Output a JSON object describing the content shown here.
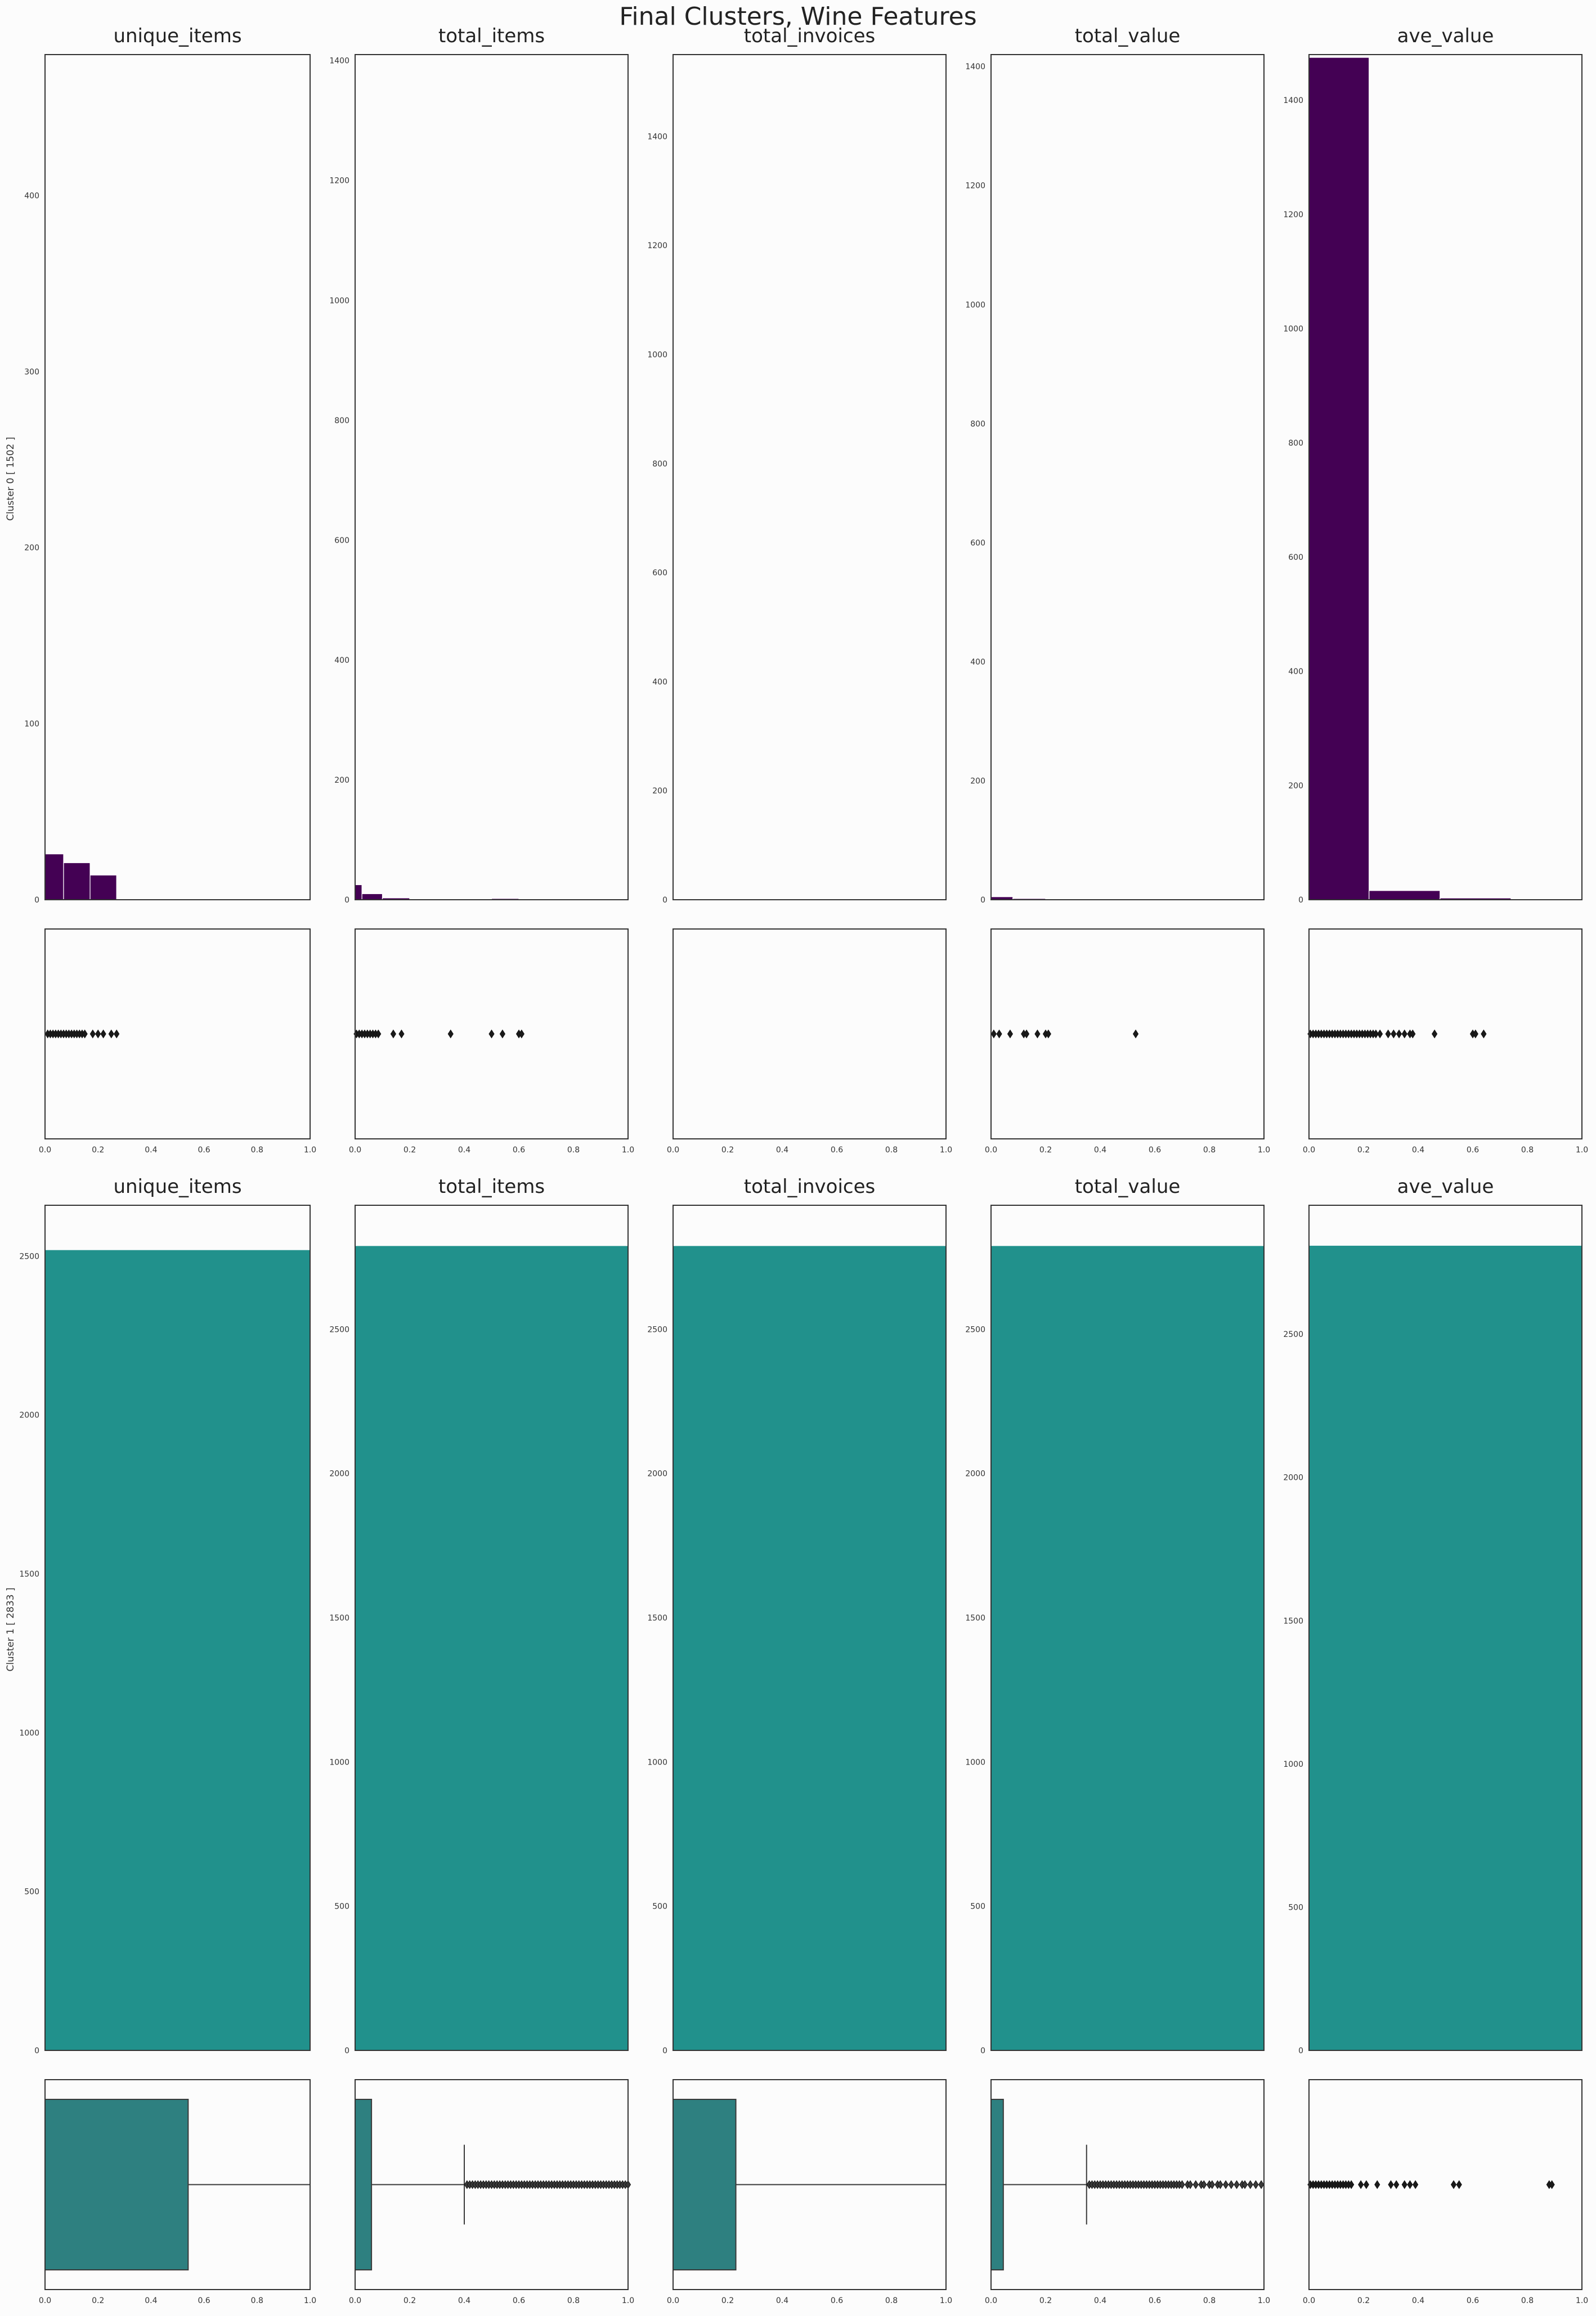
{
  "title": "Final Clusters, Wine Features",
  "colors": {
    "cluster0": "#440154",
    "cluster1": "#21918c",
    "box_fill": "#2e8080",
    "axis": "#333333",
    "background": "#fcfcfc"
  },
  "chart_data": [
    {
      "type": "histogram",
      "cluster_label": "Cluster 0 [ 1502 ]",
      "color": "#440154",
      "panels": [
        {
          "title": "unique_items",
          "ylim": [
            0,
            480
          ],
          "yticks": [
            0,
            100,
            200,
            300,
            400
          ],
          "bins": [
            [
              0.0,
              0.07,
              26
            ],
            [
              0.07,
              0.17,
              21
            ],
            [
              0.17,
              0.27,
              14
            ]
          ],
          "box": {
            "type": "points",
            "points": [
              0.01,
              0.02,
              0.03,
              0.04,
              0.05,
              0.06,
              0.07,
              0.08,
              0.09,
              0.1,
              0.11,
              0.12,
              0.13,
              0.14,
              0.15,
              0.18,
              0.2,
              0.22,
              0.25,
              0.27
            ]
          }
        },
        {
          "title": "total_items",
          "ylim": [
            0,
            1410
          ],
          "yticks": [
            0,
            200,
            400,
            600,
            800,
            1000,
            1200,
            1400
          ],
          "bins": [
            [
              0.0,
              0.025,
              25
            ],
            [
              0.025,
              0.1,
              10
            ],
            [
              0.1,
              0.2,
              3
            ],
            [
              0.2,
              0.35,
              1
            ],
            [
              0.35,
              0.45,
              0.5
            ],
            [
              0.5,
              0.6,
              2
            ],
            [
              0.6,
              0.9,
              0.5
            ]
          ],
          "box": {
            "type": "points",
            "points": [
              0.005,
              0.015,
              0.025,
              0.035,
              0.045,
              0.055,
              0.065,
              0.075,
              0.085,
              0.14,
              0.17,
              0.35,
              0.5,
              0.54,
              0.6,
              0.61
            ]
          }
        },
        {
          "title": "total_invoices",
          "ylim": [
            0,
            1550
          ],
          "yticks": [
            0,
            200,
            400,
            600,
            800,
            1000,
            1200,
            1400
          ],
          "bins": [],
          "box": {
            "type": "none",
            "points": []
          }
        },
        {
          "title": "total_value",
          "ylim": [
            0,
            1420
          ],
          "yticks": [
            0,
            200,
            400,
            600,
            800,
            1000,
            1200,
            1400
          ],
          "bins": [
            [
              0.0,
              0.08,
              5
            ],
            [
              0.08,
              0.2,
              2
            ],
            [
              0.2,
              0.55,
              1
            ]
          ],
          "box": {
            "type": "points",
            "points": [
              0.01,
              0.03,
              0.07,
              0.12,
              0.13,
              0.17,
              0.2,
              0.21,
              0.53
            ]
          }
        },
        {
          "title": "ave_value",
          "ylim": [
            0,
            1480
          ],
          "yticks": [
            0,
            200,
            400,
            600,
            800,
            1000,
            1200,
            1400
          ],
          "bins": [
            [
              0.0,
              0.22,
              1475
            ],
            [
              0.22,
              0.48,
              16
            ],
            [
              0.48,
              0.74,
              3
            ]
          ],
          "box": {
            "type": "points",
            "points": [
              0.005,
              0.015,
              0.025,
              0.035,
              0.045,
              0.055,
              0.065,
              0.075,
              0.085,
              0.095,
              0.105,
              0.115,
              0.125,
              0.135,
              0.145,
              0.155,
              0.165,
              0.175,
              0.185,
              0.195,
              0.205,
              0.215,
              0.225,
              0.235,
              0.245,
              0.26,
              0.29,
              0.31,
              0.33,
              0.35,
              0.37,
              0.38,
              0.46,
              0.6,
              0.61,
              0.64
            ]
          }
        }
      ],
      "x_ticks": [
        "0.0",
        "0.2",
        "0.4",
        "0.6",
        "0.8",
        "1.0"
      ]
    },
    {
      "type": "histogram",
      "cluster_label": "Cluster 1 [ 2833 ]",
      "color": "#21918c",
      "panels": [
        {
          "title": "unique_items",
          "ylim": [
            0,
            2660
          ],
          "yticks": [
            0,
            500,
            1000,
            1500,
            2000,
            2500
          ],
          "bins": [
            [
              0.0,
              1.0,
              2520
            ]
          ],
          "box": {
            "type": "box",
            "q1": 0.0,
            "median": 0.0,
            "q3": 0.54,
            "whisker_low": 0.0,
            "whisker_high": 1.0,
            "outliers": []
          }
        },
        {
          "title": "total_items",
          "ylim": [
            0,
            2930
          ],
          "yticks": [
            0,
            500,
            1000,
            1500,
            2000,
            2500
          ],
          "bins": [
            [
              0.0,
              1.0,
              2790
            ]
          ],
          "box": {
            "type": "box",
            "q1": 0.0,
            "median": 0.0,
            "q3": 0.06,
            "whisker_low": 0.0,
            "whisker_high": 0.4,
            "outliers": [
              0.41,
              0.42,
              0.43,
              0.44,
              0.45,
              0.46,
              0.47,
              0.48,
              0.49,
              0.5,
              0.51,
              0.52,
              0.53,
              0.54,
              0.55,
              0.56,
              0.57,
              0.58,
              0.59,
              0.6,
              0.61,
              0.62,
              0.63,
              0.64,
              0.65,
              0.66,
              0.67,
              0.68,
              0.69,
              0.7,
              0.71,
              0.72,
              0.73,
              0.74,
              0.75,
              0.76,
              0.77,
              0.78,
              0.79,
              0.8,
              0.81,
              0.82,
              0.83,
              0.84,
              0.85,
              0.86,
              0.87,
              0.88,
              0.89,
              0.9,
              0.91,
              0.92,
              0.93,
              0.94,
              0.95,
              0.96,
              0.97,
              0.98,
              0.99,
              1.0
            ]
          }
        },
        {
          "title": "total_invoices",
          "ylim": [
            0,
            2930
          ],
          "yticks": [
            0,
            500,
            1000,
            1500,
            2000,
            2500
          ],
          "bins": [
            [
              0.0,
              1.0,
              2790
            ]
          ],
          "box": {
            "type": "box",
            "q1": 0.0,
            "median": 0.0,
            "q3": 0.23,
            "whisker_low": 0.0,
            "whisker_high": 1.0,
            "outliers": []
          }
        },
        {
          "title": "total_value",
          "ylim": [
            0,
            2930
          ],
          "yticks": [
            0,
            500,
            1000,
            1500,
            2000,
            2500
          ],
          "bins": [
            [
              0.0,
              1.0,
              2790
            ]
          ],
          "box": {
            "type": "box",
            "q1": 0.0,
            "median": 0.0,
            "q3": 0.045,
            "whisker_low": 0.0,
            "whisker_high": 0.35,
            "outliers": [
              0.36,
              0.37,
              0.38,
              0.39,
              0.4,
              0.41,
              0.42,
              0.43,
              0.44,
              0.45,
              0.46,
              0.47,
              0.48,
              0.49,
              0.5,
              0.51,
              0.52,
              0.53,
              0.54,
              0.55,
              0.56,
              0.57,
              0.58,
              0.59,
              0.6,
              0.61,
              0.62,
              0.63,
              0.64,
              0.65,
              0.66,
              0.67,
              0.68,
              0.69,
              0.7,
              0.72,
              0.73,
              0.75,
              0.77,
              0.78,
              0.8,
              0.81,
              0.83,
              0.84,
              0.86,
              0.88,
              0.9,
              0.92,
              0.93,
              0.95,
              0.97,
              0.99
            ]
          }
        },
        {
          "title": "ave_value",
          "ylim": [
            0,
            2950
          ],
          "yticks": [
            0,
            500,
            1000,
            1500,
            2000,
            2500
          ],
          "bins": [
            [
              -0.01,
              1.0,
              2810
            ]
          ],
          "box": {
            "type": "points",
            "points": [
              0.005,
              0.015,
              0.025,
              0.035,
              0.045,
              0.055,
              0.065,
              0.075,
              0.085,
              0.095,
              0.105,
              0.115,
              0.125,
              0.135,
              0.145,
              0.155,
              0.19,
              0.21,
              0.25,
              0.3,
              0.32,
              0.35,
              0.37,
              0.39,
              0.53,
              0.55,
              0.88,
              0.89
            ]
          }
        }
      ],
      "x_ticks": [
        "0.0",
        "0.2",
        "0.4",
        "0.6",
        "0.8",
        "1.0"
      ]
    }
  ]
}
